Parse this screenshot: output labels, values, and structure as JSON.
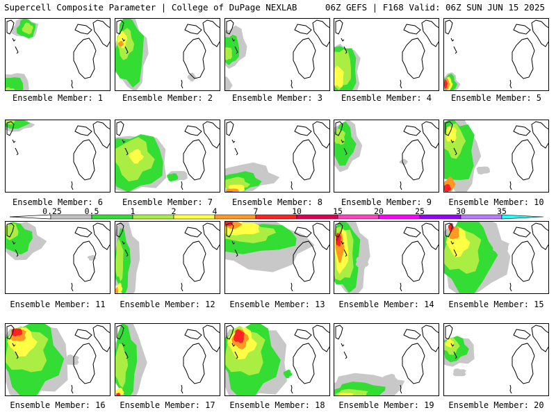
{
  "header": {
    "title_left": "Supercell Composite Parameter | College of DuPage NEXLAB",
    "title_right": "06Z GEFS | F168 Valid: 06Z SUN JUN 15 2025"
  },
  "panels": [
    {
      "label": "Ensemble Member: 1"
    },
    {
      "label": "Ensemble Member: 2"
    },
    {
      "label": "Ensemble Member: 3"
    },
    {
      "label": "Ensemble Member: 4"
    },
    {
      "label": "Ensemble Member: 5"
    },
    {
      "label": "Ensemble Member: 6"
    },
    {
      "label": "Ensemble Member: 7"
    },
    {
      "label": "Ensemble Member: 8"
    },
    {
      "label": "Ensemble Member: 9"
    },
    {
      "label": "Ensemble Member: 10"
    },
    {
      "label": "Ensemble Member: 11"
    },
    {
      "label": "Ensemble Member: 12"
    },
    {
      "label": "Ensemble Member: 13"
    },
    {
      "label": "Ensemble Member: 14"
    },
    {
      "label": "Ensemble Member: 15"
    },
    {
      "label": "Ensemble Member: 16"
    },
    {
      "label": "Ensemble Member: 17"
    },
    {
      "label": "Ensemble Member: 18"
    },
    {
      "label": "Ensemble Member: 19"
    },
    {
      "label": "Ensemble Member: 20"
    }
  ],
  "colorbar": {
    "levels": [
      "0.25",
      "0.5",
      "1",
      "2",
      "4",
      "7",
      "10",
      "15",
      "20",
      "25",
      "30",
      "35"
    ],
    "colors": [
      "#c0c0c0",
      "#33dd33",
      "#aaee44",
      "#ffff44",
      "#ff9922",
      "#ff2222",
      "#dd0055",
      "#ff44bb",
      "#ff00ff",
      "#9900ff",
      "#bb77ff",
      "#22ffff"
    ]
  },
  "colors": {
    "gray": "#c8c8c8",
    "green": "#33dd33",
    "lime": "#aaee44",
    "yellow": "#ffff44",
    "orange": "#ff9922",
    "red": "#ff2222",
    "magenta": "#dd0055"
  }
}
